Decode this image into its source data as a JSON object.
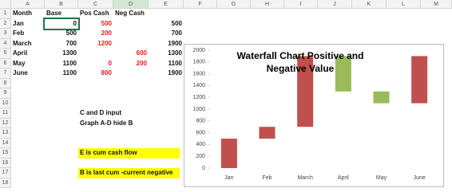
{
  "column_headers": [
    "A",
    "B",
    "C",
    "D",
    "E",
    "F",
    "G",
    "H",
    "I",
    "J",
    "K",
    "L",
    "M"
  ],
  "row_headers": [
    1,
    2,
    3,
    4,
    5,
    6,
    7,
    8,
    9,
    10,
    11,
    12,
    13,
    14,
    15,
    16,
    17,
    18
  ],
  "table": {
    "rows": [
      [
        "Month",
        "Base",
        "Pos Cash",
        "Neg Cash",
        null
      ],
      [
        "Jan",
        0,
        500,
        null,
        500
      ],
      [
        "Feb",
        500,
        200,
        null,
        700
      ],
      [
        "March",
        700,
        1200,
        null,
        1900
      ],
      [
        "April",
        1300,
        null,
        600,
        1300
      ],
      [
        "May",
        1100,
        0,
        200,
        1100
      ],
      [
        "June",
        1100,
        800,
        null,
        1900
      ],
      [
        null
      ],
      [
        null
      ],
      [
        null
      ],
      [
        null,
        null,
        "C and D input"
      ],
      [
        null,
        null,
        "Graph A-D hide B"
      ],
      [
        null
      ],
      [
        null
      ],
      [
        null,
        null,
        "E is cum cash flow"
      ],
      [
        null
      ],
      [
        null,
        null,
        "B is last cum -current negative"
      ],
      [
        null
      ]
    ]
  },
  "chart": {
    "type": "bar",
    "stacked": true,
    "title": "Waterfall Chart Positive and Negative Value",
    "colors": {
      "pos": "#c0504d",
      "neg": "#9bbb59"
    },
    "ylim": [
      0,
      2000
    ],
    "yticks": [
      0,
      200,
      400,
      600,
      800,
      1000,
      1200,
      1400,
      1600,
      1800,
      2000
    ]
  }
}
